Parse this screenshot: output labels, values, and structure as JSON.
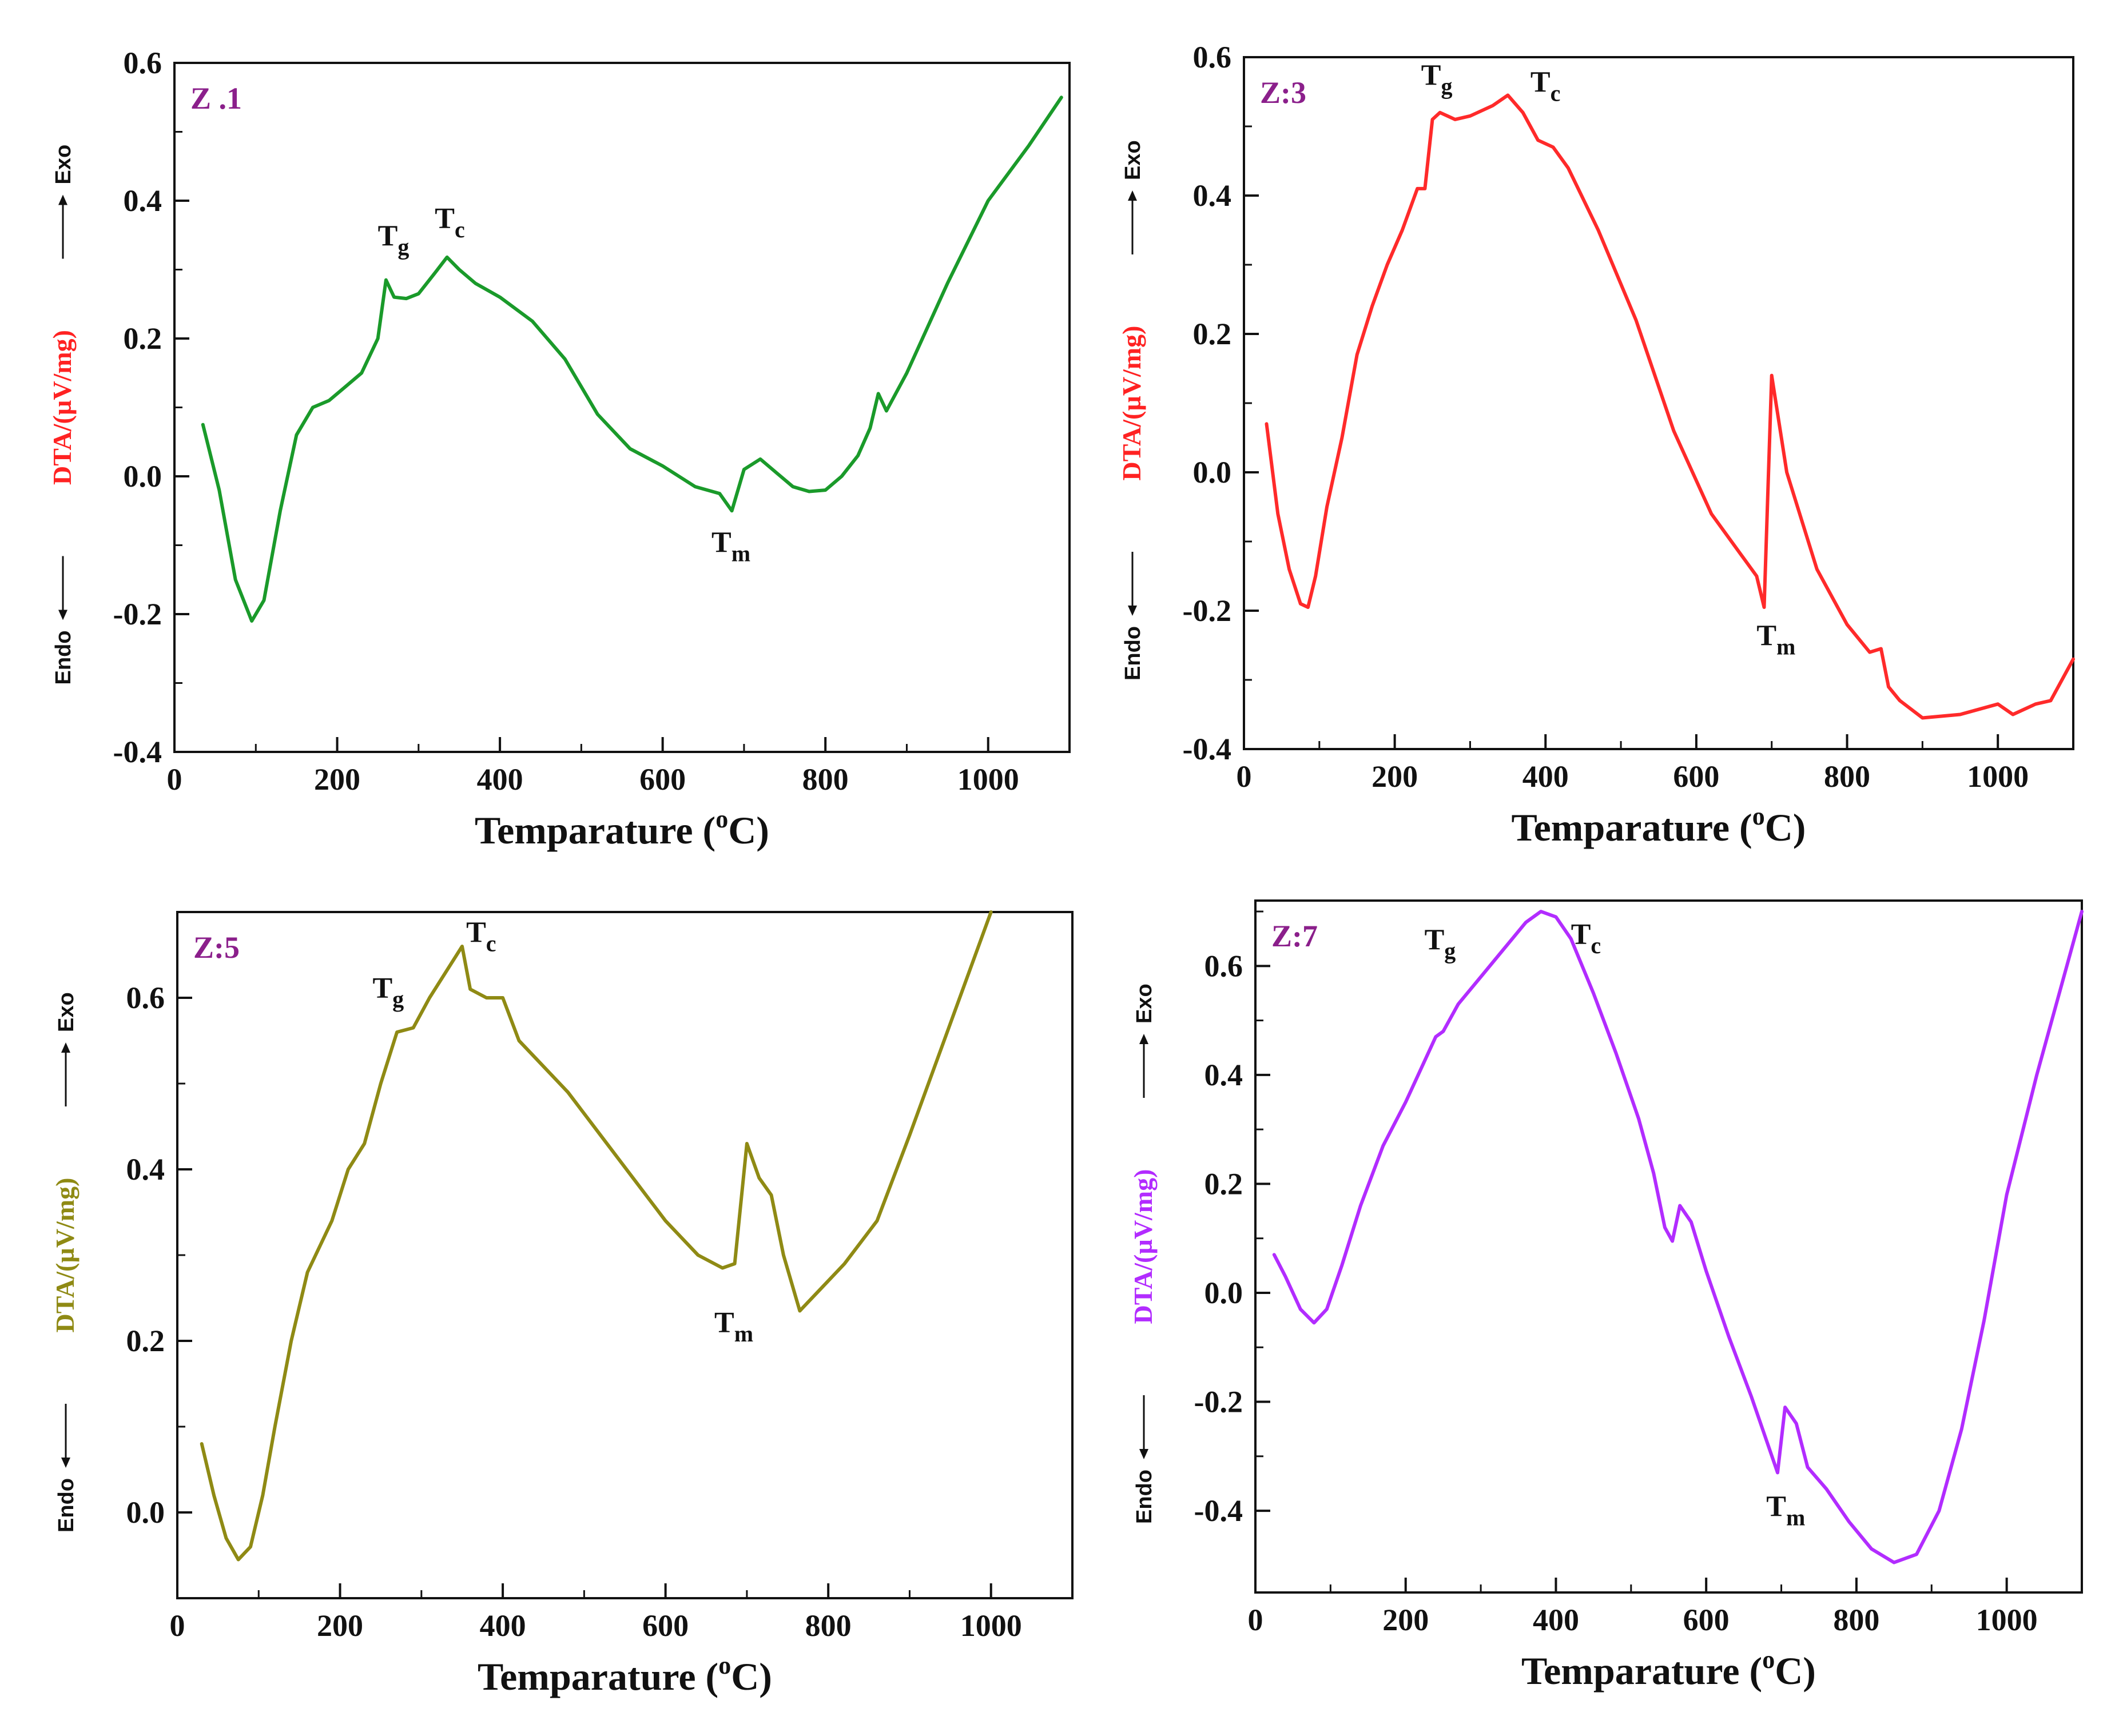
{
  "figure": {
    "background": "#ffffff"
  },
  "chart_data": [
    {
      "id": "p1",
      "type": "line",
      "panel_label": "Z .1",
      "color": "#1a9a2a",
      "xlabel": "Temparature (",
      "xlabel_sup": "o",
      "xlabel_unit": "C)",
      "ylabel": "DTA/(µV/mg)",
      "ylabel_color": "#ff2222",
      "exo_label": "Exo",
      "endo_label": "Endo",
      "xlim": [
        0,
        1100
      ],
      "ylim": [
        -0.4,
        0.6
      ],
      "xticks": [
        0,
        200,
        400,
        600,
        800,
        1000
      ],
      "xtick_labels": [
        "0",
        "200",
        "400",
        "600",
        "800",
        "1000"
      ],
      "yticks": [
        -0.4,
        -0.2,
        0.0,
        0.2,
        0.4,
        0.6
      ],
      "ytick_labels": [
        "-0.4",
        "-0.2",
        "0.0",
        "0.2",
        "0.4",
        "0.6"
      ],
      "annotations": [
        {
          "main": "T",
          "sub": "g",
          "x": 250,
          "y": 0.335
        },
        {
          "main": "T",
          "sub": "c",
          "x": 320,
          "y": 0.36
        },
        {
          "main": "T",
          "sub": "m",
          "x": 660,
          "y": -0.11
        }
      ],
      "series": [
        {
          "name": "Z .1",
          "x": [
            35,
            55,
            75,
            95,
            110,
            130,
            150,
            170,
            190,
            210,
            230,
            250,
            260,
            270,
            285,
            300,
            320,
            335,
            350,
            370,
            400,
            440,
            480,
            520,
            560,
            600,
            640,
            670,
            685,
            700,
            720,
            740,
            760,
            780,
            800,
            820,
            840,
            855,
            865,
            875,
            900,
            950,
            1000,
            1050,
            1090
          ],
          "y": [
            0.075,
            -0.02,
            -0.15,
            -0.21,
            -0.18,
            -0.05,
            0.06,
            0.1,
            0.11,
            0.13,
            0.15,
            0.2,
            0.285,
            0.26,
            0.258,
            0.265,
            0.295,
            0.318,
            0.3,
            0.28,
            0.26,
            0.225,
            0.17,
            0.09,
            0.04,
            0.015,
            -0.015,
            -0.025,
            -0.05,
            0.01,
            0.025,
            0.005,
            -0.015,
            -0.022,
            -0.02,
            0.0,
            0.03,
            0.07,
            0.12,
            0.095,
            0.15,
            0.28,
            0.4,
            0.48,
            0.55
          ]
        }
      ]
    },
    {
      "id": "p2",
      "type": "line",
      "panel_label": "Z:3",
      "color": "#ff2a2a",
      "xlabel": "Temparature (",
      "xlabel_sup": "o",
      "xlabel_unit": "C)",
      "ylabel": "DTA/(µV/mg)",
      "ylabel_color": "#ff2222",
      "exo_label": "Exo",
      "endo_label": "Endo",
      "xlim": [
        0,
        1100
      ],
      "ylim": [
        -0.4,
        0.6
      ],
      "xticks": [
        0,
        200,
        400,
        600,
        800,
        1000
      ],
      "xtick_labels": [
        "0",
        "200",
        "400",
        "600",
        "800",
        "1000"
      ],
      "yticks": [
        -0.4,
        -0.2,
        0.0,
        0.2,
        0.4,
        0.6
      ],
      "ytick_labels": [
        "-0.4",
        "-0.2",
        "0.0",
        "0.2",
        "0.4",
        "0.6"
      ],
      "annotations": [
        {
          "main": "T",
          "sub": "g",
          "x": 235,
          "y": 0.56
        },
        {
          "main": "T",
          "sub": "c",
          "x": 380,
          "y": 0.55
        },
        {
          "main": "T",
          "sub": "m",
          "x": 680,
          "y": -0.25
        }
      ],
      "series": [
        {
          "name": "Z:3",
          "x": [
            30,
            45,
            60,
            75,
            85,
            95,
            110,
            130,
            150,
            170,
            190,
            210,
            230,
            240,
            250,
            260,
            280,
            300,
            330,
            350,
            370,
            390,
            410,
            430,
            470,
            520,
            570,
            620,
            660,
            680,
            690,
            700,
            720,
            760,
            800,
            830,
            845,
            855,
            870,
            900,
            950,
            1000,
            1020,
            1050,
            1070,
            1100
          ],
          "y": [
            0.07,
            -0.06,
            -0.14,
            -0.19,
            -0.195,
            -0.15,
            -0.05,
            0.05,
            0.17,
            0.24,
            0.3,
            0.35,
            0.41,
            0.41,
            0.51,
            0.52,
            0.51,
            0.515,
            0.53,
            0.545,
            0.52,
            0.48,
            0.47,
            0.44,
            0.35,
            0.22,
            0.06,
            -0.06,
            -0.12,
            -0.15,
            -0.195,
            0.14,
            0.0,
            -0.14,
            -0.22,
            -0.26,
            -0.255,
            -0.31,
            -0.33,
            -0.355,
            -0.35,
            -0.335,
            -0.35,
            -0.335,
            -0.33,
            -0.27
          ]
        }
      ]
    },
    {
      "id": "p3",
      "type": "line",
      "panel_label": "Z:5",
      "color": "#8f8a14",
      "xlabel": "Temparature (",
      "xlabel_sup": "o",
      "xlabel_unit": "C)",
      "ylabel": "DTA/(µV/mg)",
      "ylabel_color": "#8f8a14",
      "exo_label": "Exo",
      "endo_label": "Endo",
      "xlim": [
        0,
        1100
      ],
      "ylim": [
        -0.1,
        0.7
      ],
      "xticks": [
        0,
        200,
        400,
        600,
        800,
        1000
      ],
      "xtick_labels": [
        "0",
        "200",
        "400",
        "600",
        "800",
        "1000"
      ],
      "yticks": [
        0.0,
        0.2,
        0.4,
        0.6
      ],
      "ytick_labels": [
        "0.0",
        "0.2",
        "0.4",
        "0.6"
      ],
      "annotations": [
        {
          "main": "T",
          "sub": "g",
          "x": 240,
          "y": 0.6
        },
        {
          "main": "T",
          "sub": "c",
          "x": 355,
          "y": 0.665
        },
        {
          "main": "T",
          "sub": "m",
          "x": 660,
          "y": 0.21
        }
      ],
      "series": [
        {
          "name": "Z:5",
          "x": [
            30,
            45,
            60,
            75,
            90,
            105,
            120,
            140,
            160,
            190,
            210,
            230,
            250,
            270,
            290,
            310,
            330,
            350,
            360,
            380,
            400,
            420,
            440,
            480,
            520,
            560,
            600,
            640,
            670,
            685,
            700,
            715,
            730,
            745,
            765,
            790,
            820,
            860,
            900,
            950,
            1000
          ],
          "y": [
            0.08,
            0.02,
            -0.03,
            -0.055,
            -0.04,
            0.02,
            0.1,
            0.2,
            0.28,
            0.34,
            0.4,
            0.43,
            0.5,
            0.56,
            0.565,
            0.6,
            0.63,
            0.66,
            0.61,
            0.6,
            0.6,
            0.55,
            0.53,
            0.49,
            0.44,
            0.39,
            0.34,
            0.3,
            0.285,
            0.29,
            0.43,
            0.39,
            0.37,
            0.3,
            0.235,
            0.26,
            0.29,
            0.34,
            0.44,
            0.57,
            0.7
          ]
        }
      ]
    },
    {
      "id": "p4",
      "type": "line",
      "panel_label": "Z:7",
      "color": "#b22cff",
      "xlabel": "Temparature (",
      "xlabel_sup": "o",
      "xlabel_unit": "C)",
      "ylabel": "DTA/(µV/mg)",
      "ylabel_color": "#b22cff",
      "exo_label": "Exo",
      "endo_label": "Endo",
      "xlim": [
        0,
        1100
      ],
      "ylim": [
        -0.55,
        0.72
      ],
      "xticks": [
        0,
        200,
        400,
        600,
        800,
        1000
      ],
      "xtick_labels": [
        "0",
        "200",
        "400",
        "600",
        "800",
        "1000"
      ],
      "yticks": [
        -0.4,
        -0.2,
        0.0,
        0.2,
        0.4,
        0.6
      ],
      "ytick_labels": [
        "-0.4",
        "-0.2",
        "0.0",
        "0.2",
        "0.4",
        "0.6"
      ],
      "annotations": [
        {
          "main": "T",
          "sub": "g",
          "x": 225,
          "y": 0.63
        },
        {
          "main": "T",
          "sub": "c",
          "x": 420,
          "y": 0.64
        },
        {
          "main": "T",
          "sub": "m",
          "x": 680,
          "y": -0.41
        }
      ],
      "series": [
        {
          "name": "Z:7",
          "x": [
            25,
            40,
            60,
            78,
            95,
            115,
            140,
            170,
            200,
            220,
            240,
            250,
            270,
            300,
            330,
            360,
            380,
            400,
            420,
            450,
            480,
            510,
            530,
            545,
            555,
            565,
            580,
            600,
            630,
            660,
            680,
            695,
            705,
            720,
            735,
            760,
            790,
            820,
            850,
            880,
            910,
            940,
            970,
            1000,
            1040,
            1070,
            1100
          ],
          "y": [
            0.07,
            0.03,
            -0.03,
            -0.055,
            -0.03,
            0.05,
            0.16,
            0.27,
            0.35,
            0.41,
            0.47,
            0.48,
            0.53,
            0.58,
            0.63,
            0.68,
            0.7,
            0.69,
            0.65,
            0.55,
            0.44,
            0.32,
            0.22,
            0.12,
            0.095,
            0.16,
            0.13,
            0.04,
            -0.08,
            -0.19,
            -0.27,
            -0.33,
            -0.21,
            -0.24,
            -0.32,
            -0.36,
            -0.42,
            -0.47,
            -0.495,
            -0.48,
            -0.4,
            -0.25,
            -0.05,
            0.18,
            0.4,
            0.55,
            0.7
          ]
        }
      ]
    }
  ]
}
